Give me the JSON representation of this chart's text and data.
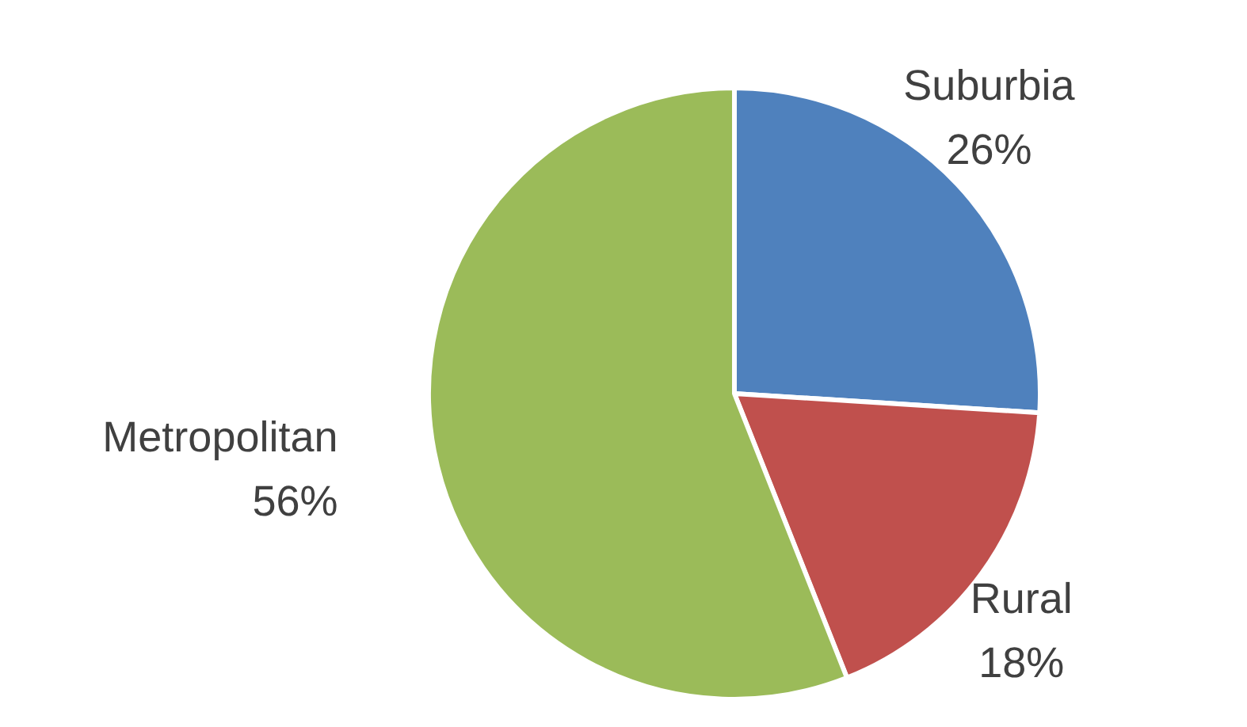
{
  "chart_data": {
    "type": "pie",
    "categories": [
      "Suburbia",
      "Rural",
      "Metropolitan"
    ],
    "values": [
      26,
      18,
      56
    ],
    "colors": [
      "#4f81bd",
      "#c0504d",
      "#9bbb59"
    ],
    "value_labels": [
      "26%",
      "18%",
      "56%"
    ]
  }
}
